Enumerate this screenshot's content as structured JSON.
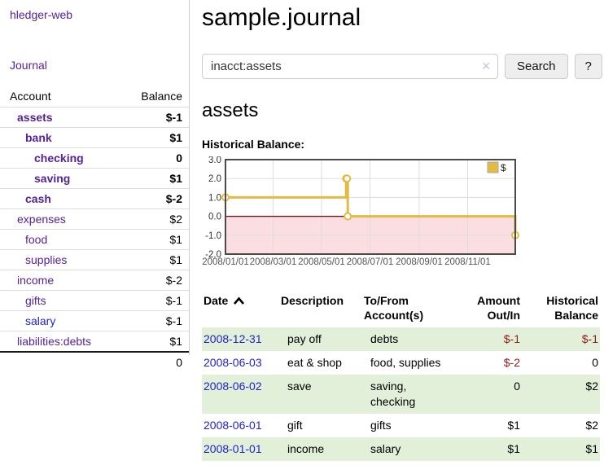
{
  "colors": {
    "link_purple": "#552299",
    "link_blue": "#2222cc",
    "negative_strong": "#8f1a1b",
    "negative_light": "#c08180",
    "row_stripe_green": "#e2f0da",
    "chart_gold": "#e3bb42",
    "chart_negative_fill": "#fbdee1",
    "chart_zero_line": "#8b0000",
    "button_bg": "#eeeeee",
    "border_gray": "#cccccc"
  },
  "sidebar": {
    "brand": "hledger-web",
    "journal_link": "Journal",
    "table": {
      "account_header": "Account",
      "balance_header": "Balance"
    },
    "accounts": [
      {
        "name": "assets",
        "balance": "$-1"
      },
      {
        "name": "bank",
        "balance": "$1"
      },
      {
        "name": "checking",
        "balance": "0"
      },
      {
        "name": "saving",
        "balance": "$1"
      },
      {
        "name": "cash",
        "balance": "$-2"
      },
      {
        "name": "expenses",
        "balance": "$2"
      },
      {
        "name": "food",
        "balance": "$1"
      },
      {
        "name": "supplies",
        "balance": "$1"
      },
      {
        "name": "income",
        "balance": "$-2"
      },
      {
        "name": "gifts",
        "balance": "$-1"
      },
      {
        "name": "salary",
        "balance": "$-1"
      },
      {
        "name": "liabilities:debts",
        "balance": "$1"
      }
    ],
    "total": "0"
  },
  "main": {
    "title": "sample.journal",
    "search": {
      "value": "inacct:assets",
      "button_label": "Search",
      "help_label": "?",
      "clear_glyph": "✕"
    },
    "section_title": "assets",
    "chart_label": "Historical Balance:"
  },
  "chart_data": {
    "type": "line",
    "step": true,
    "title": "Historical Balance",
    "series": [
      {
        "name": "$",
        "color": "#e3bb42",
        "points": [
          [
            "2008-01-01",
            1
          ],
          [
            "2008-06-01",
            2
          ],
          [
            "2008-06-02",
            2
          ],
          [
            "2008-06-03",
            0
          ],
          [
            "2008-12-31",
            -1
          ]
        ]
      }
    ],
    "x_range": [
      "2008-01-01",
      "2008-12-31"
    ],
    "x_ticks": [
      "2008/01/01",
      "2008/03/01",
      "2008/05/01",
      "2008/07/01",
      "2008/09/01",
      "2008/11/01"
    ],
    "y_ticks": [
      3.0,
      2.0,
      1.0,
      0.0,
      -1.0,
      -2.0
    ],
    "ylim": [
      -2,
      3
    ],
    "grid": true,
    "legend": {
      "label": "$",
      "position": "top-right"
    },
    "negative_region_color": "#fbdee1",
    "zero_line_color": "#8b0000"
  },
  "journal_table": {
    "headers": {
      "date": "Date",
      "description": "Description",
      "accounts": "To/From Account(s)",
      "amount": "Amount Out/In",
      "balance": "Historical Balance"
    },
    "rows": [
      {
        "date": "2008-12-31",
        "description": "pay off",
        "accounts": "debts",
        "amount": "$-1",
        "balance": "$-1"
      },
      {
        "date": "2008-06-03",
        "description": "eat & shop",
        "accounts": "food, supplies",
        "amount": "$-2",
        "balance": "0"
      },
      {
        "date": "2008-06-02",
        "description": "save",
        "accounts": "saving, checking",
        "amount": "0",
        "balance": "$2"
      },
      {
        "date": "2008-06-01",
        "description": "gift",
        "accounts": "gifts",
        "amount": "$1",
        "balance": "$2"
      },
      {
        "date": "2008-01-01",
        "description": "income",
        "accounts": "salary",
        "amount": "$1",
        "balance": "$1"
      }
    ]
  }
}
